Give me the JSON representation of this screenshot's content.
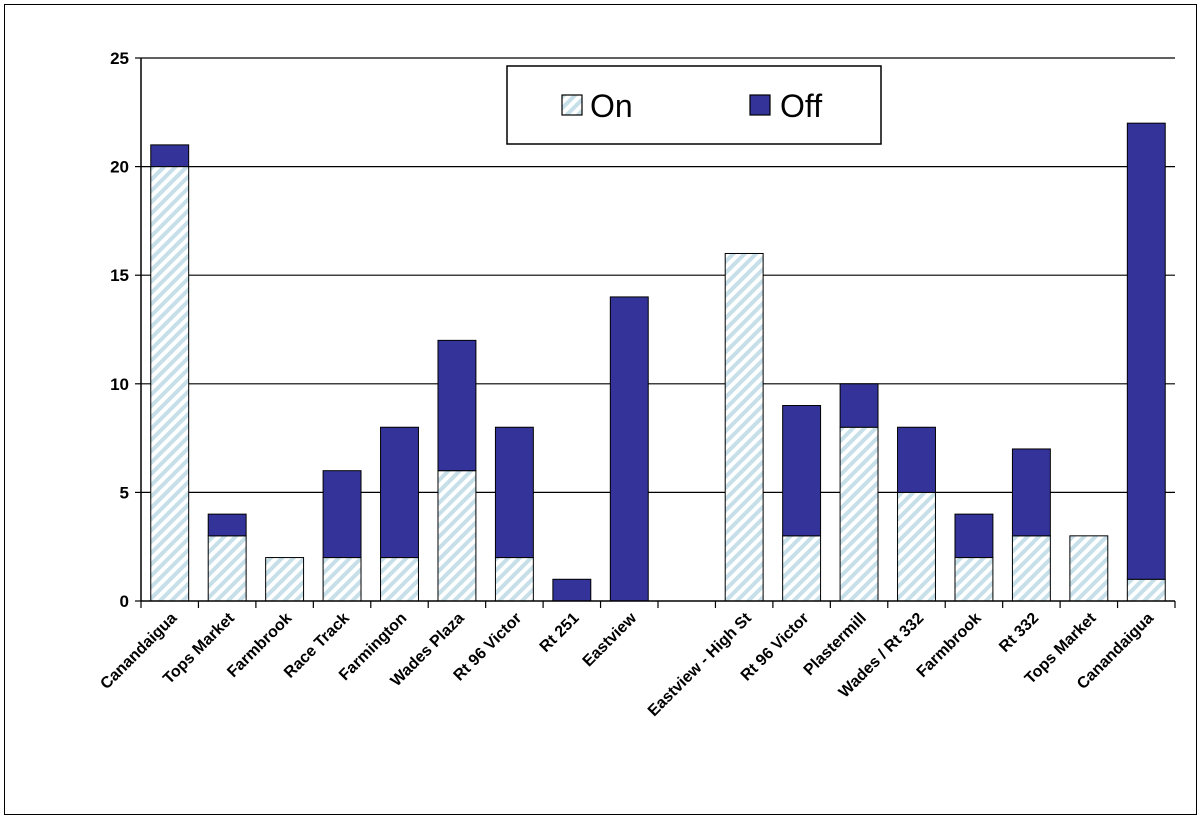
{
  "chart_data": {
    "type": "bar",
    "stacked": true,
    "categories": [
      "Canandaigua",
      "Tops Market",
      "Farmbrook",
      "Race Track",
      "Farmington",
      "Wades Plaza",
      "Rt 96 Victor",
      "Rt 251",
      "Eastview",
      "",
      "Eastview - High St",
      "Rt 96 Victor",
      "Plastermill",
      "Wades / Rt 332",
      "Farmbrook",
      "Rt 332",
      "Tops Market",
      "Canandaigua"
    ],
    "series": [
      {
        "name": "On",
        "color": "#dcecf2",
        "pattern": "diagonal-hatch",
        "values": [
          20,
          3,
          2,
          2,
          2,
          6,
          2,
          0,
          0,
          0,
          16,
          3,
          8,
          5,
          2,
          3,
          3,
          1
        ]
      },
      {
        "name": "Off",
        "color": "#333399",
        "values": [
          1,
          1,
          0,
          4,
          6,
          6,
          6,
          1,
          14,
          0,
          0,
          6,
          2,
          3,
          2,
          4,
          0,
          21
        ]
      }
    ],
    "title": "",
    "xlabel": "",
    "ylabel": "",
    "ylim": [
      0,
      25
    ],
    "yticks": [
      0,
      5,
      10,
      15,
      20,
      25
    ],
    "grid": true,
    "legend_position": "top-center"
  }
}
